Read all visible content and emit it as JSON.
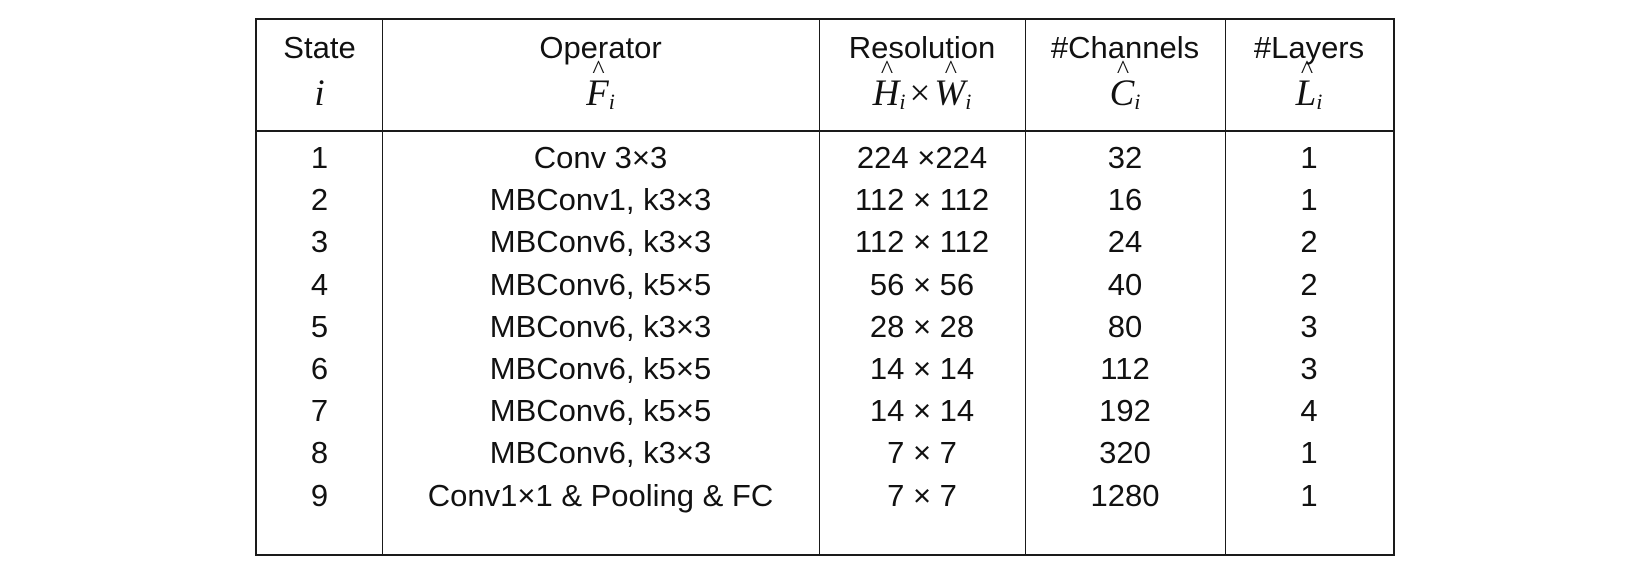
{
  "table": {
    "headers": [
      {
        "title": "State",
        "symbol": "i",
        "symbol_parts": {
          "base": "i",
          "sub": ""
        }
      },
      {
        "title": "Operator",
        "symbol": "F̂i",
        "symbol_parts": {
          "base": "F",
          "sub": "i"
        }
      },
      {
        "title": "Resolution",
        "symbol": "Ĥi × Ŵi",
        "symbol_parts": {
          "base": "H",
          "sub": "i",
          "base2": "W",
          "sub2": "i",
          "op": "×"
        }
      },
      {
        "title": "#Channels",
        "symbol": "Ĉi",
        "symbol_parts": {
          "base": "C",
          "sub": "i"
        }
      },
      {
        "title": "#Layers",
        "symbol": "L̂i",
        "symbol_parts": {
          "base": "L",
          "sub": "i"
        }
      }
    ],
    "rows": [
      {
        "state": "1",
        "operator": "Conv 3×3",
        "resolution": "224 ×224",
        "channels": "32",
        "layers": "1"
      },
      {
        "state": "2",
        "operator": "MBConv1, k3×3",
        "resolution": "112 × 112",
        "channels": "16",
        "layers": "1"
      },
      {
        "state": "3",
        "operator": "MBConv6, k3×3",
        "resolution": "112 × 112",
        "channels": "24",
        "layers": "2"
      },
      {
        "state": "4",
        "operator": "MBConv6, k5×5",
        "resolution": "56 × 56",
        "channels": "40",
        "layers": "2"
      },
      {
        "state": "5",
        "operator": "MBConv6, k3×3",
        "resolution": "28 × 28",
        "channels": "80",
        "layers": "3"
      },
      {
        "state": "6",
        "operator": "MBConv6, k5×5",
        "resolution": "14 × 14",
        "channels": "112",
        "layers": "3"
      },
      {
        "state": "7",
        "operator": "MBConv6, k5×5",
        "resolution": "14 × 14",
        "channels": "192",
        "layers": "4"
      },
      {
        "state": "8",
        "operator": "MBConv6, k3×3",
        "resolution": "7 × 7",
        "channels": "320",
        "layers": "1"
      },
      {
        "state": "9",
        "operator": "Conv1×1 & Pooling & FC",
        "resolution": "7 × 7",
        "channels": "1280",
        "layers": "1"
      }
    ]
  }
}
